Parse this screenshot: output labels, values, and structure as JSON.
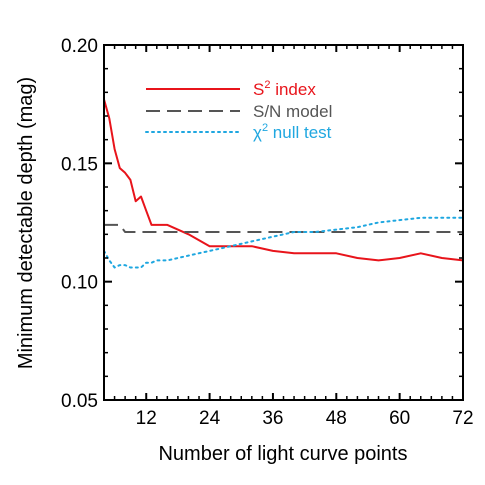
{
  "chart_data": {
    "type": "line",
    "xlabel": "Number of light curve points",
    "ylabel": "Minimum detectable depth (mag)",
    "xlim": [
      4,
      72
    ],
    "ylim": [
      0.05,
      0.2
    ],
    "xticks": [
      12,
      24,
      36,
      48,
      60,
      72
    ],
    "yticks": [
      0.05,
      0.1,
      0.15,
      0.2
    ],
    "xtick_labels": [
      "12",
      "24",
      "36",
      "48",
      "60",
      "72"
    ],
    "ytick_labels": [
      "0.05",
      "0.10",
      "0.15",
      "0.20"
    ],
    "legend_position": "top-right",
    "series": [
      {
        "name": "S² index",
        "name_base": "S",
        "name_sup": "2",
        "name_rest": " index",
        "color": "#e8141b",
        "style": "solid",
        "x": [
          4,
          5,
          6,
          7,
          8,
          9,
          10,
          11,
          12,
          13,
          14,
          16,
          20,
          24,
          28,
          32,
          36,
          40,
          44,
          48,
          52,
          56,
          60,
          64,
          68,
          72
        ],
        "y": [
          0.177,
          0.169,
          0.156,
          0.148,
          0.146,
          0.143,
          0.134,
          0.136,
          0.13,
          0.124,
          0.124,
          0.124,
          0.12,
          0.115,
          0.115,
          0.115,
          0.113,
          0.112,
          0.112,
          0.112,
          0.11,
          0.109,
          0.11,
          0.112,
          0.11,
          0.109
        ]
      },
      {
        "name": "S/N model",
        "name_base": "S/N model",
        "name_sup": "",
        "name_rest": "",
        "color": "#555555",
        "style": "dashed",
        "x": [
          4,
          6,
          7,
          8,
          12,
          24,
          36,
          48,
          60,
          72
        ],
        "y": [
          0.124,
          0.124,
          0.124,
          0.121,
          0.121,
          0.121,
          0.121,
          0.121,
          0.121,
          0.121
        ]
      },
      {
        "name": "χ² null test",
        "name_base": "χ",
        "name_sup": "2",
        "name_rest": " null test",
        "color": "#1fa7e0",
        "style": "dotted",
        "x": [
          4,
          5,
          6,
          7,
          8,
          9,
          10,
          11,
          12,
          13,
          14,
          16,
          20,
          24,
          28,
          32,
          36,
          40,
          44,
          48,
          52,
          56,
          60,
          64,
          68,
          72
        ],
        "y": [
          0.113,
          0.109,
          0.106,
          0.107,
          0.107,
          0.106,
          0.106,
          0.106,
          0.108,
          0.108,
          0.109,
          0.109,
          0.111,
          0.113,
          0.115,
          0.117,
          0.119,
          0.121,
          0.121,
          0.122,
          0.123,
          0.125,
          0.126,
          0.127,
          0.127,
          0.127
        ]
      }
    ]
  }
}
